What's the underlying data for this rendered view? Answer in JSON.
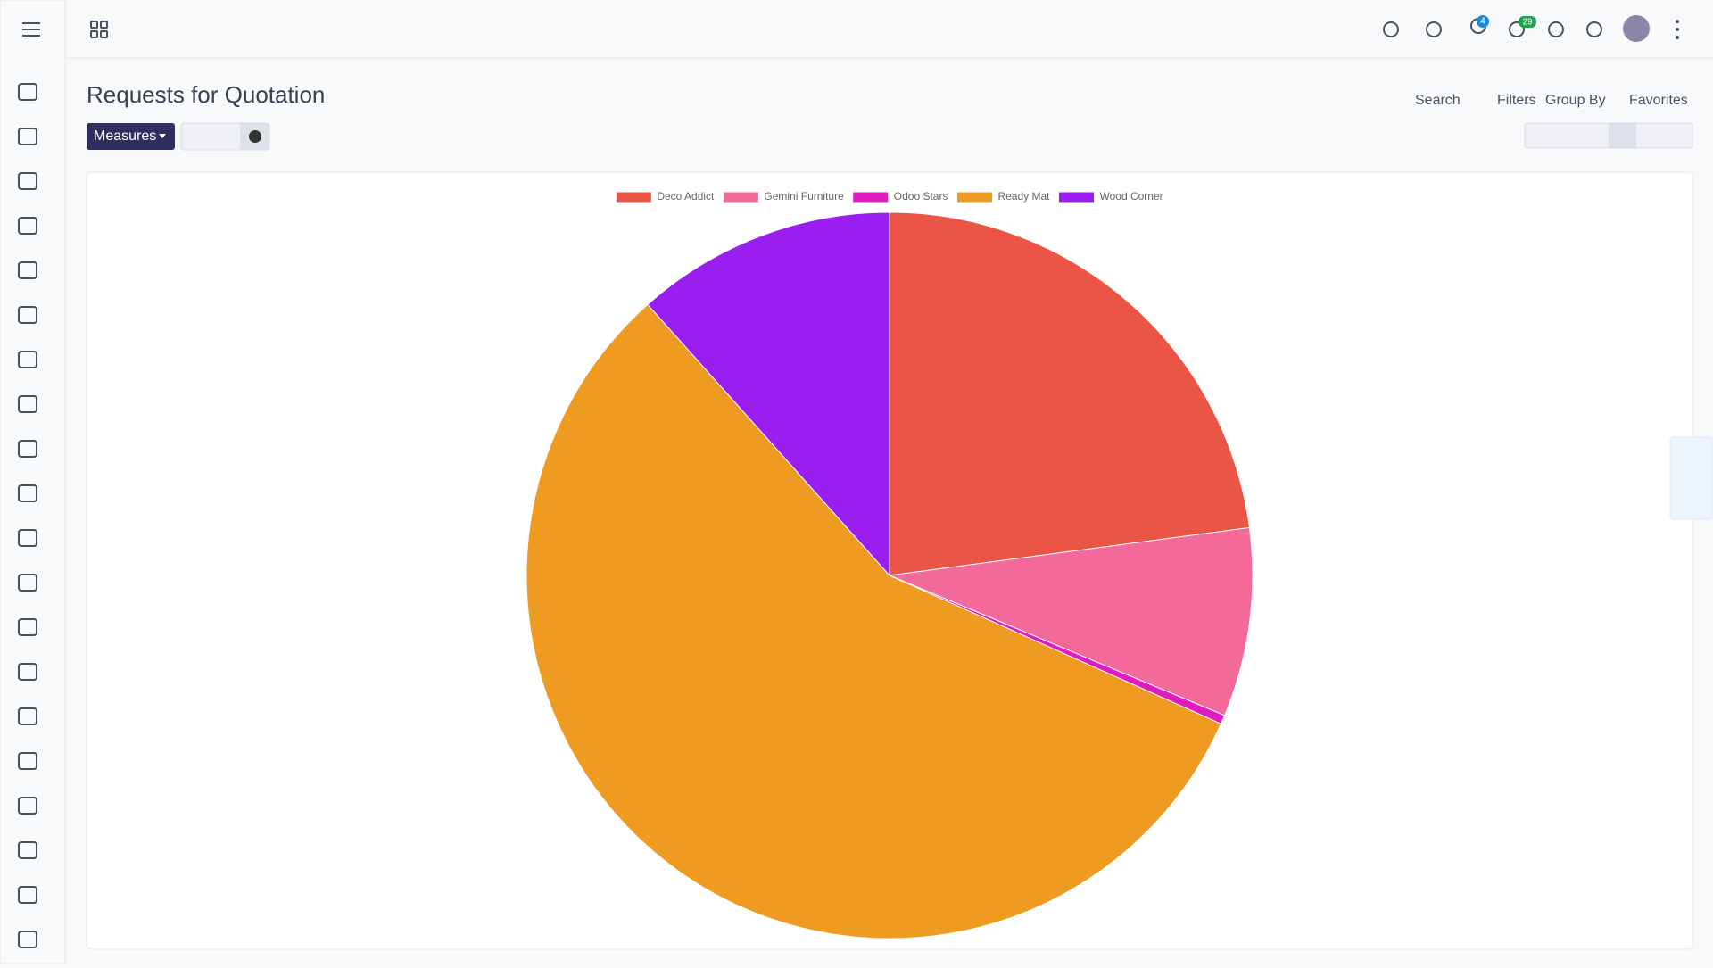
{
  "page": {
    "title": "Requests for Quotation",
    "measures": "Measures",
    "search": "Search",
    "filters": "Filters",
    "group_by": "Group By",
    "favorites": "Favorites",
    "badges": [
      "4",
      "29"
    ]
  },
  "chart_data": {
    "type": "pie",
    "categories": [
      "Deco Addict",
      "Gemini Furniture",
      "Odoo Stars",
      "Ready Mat",
      "Wood Corner"
    ],
    "values": [
      22.9,
      8.4,
      0.4,
      56.7,
      11.6
    ],
    "colors": [
      "#eb5545",
      "#f36a9a",
      "#e01cc0",
      "#ef9b21",
      "#9a1ef0"
    ],
    "legend": "top"
  }
}
